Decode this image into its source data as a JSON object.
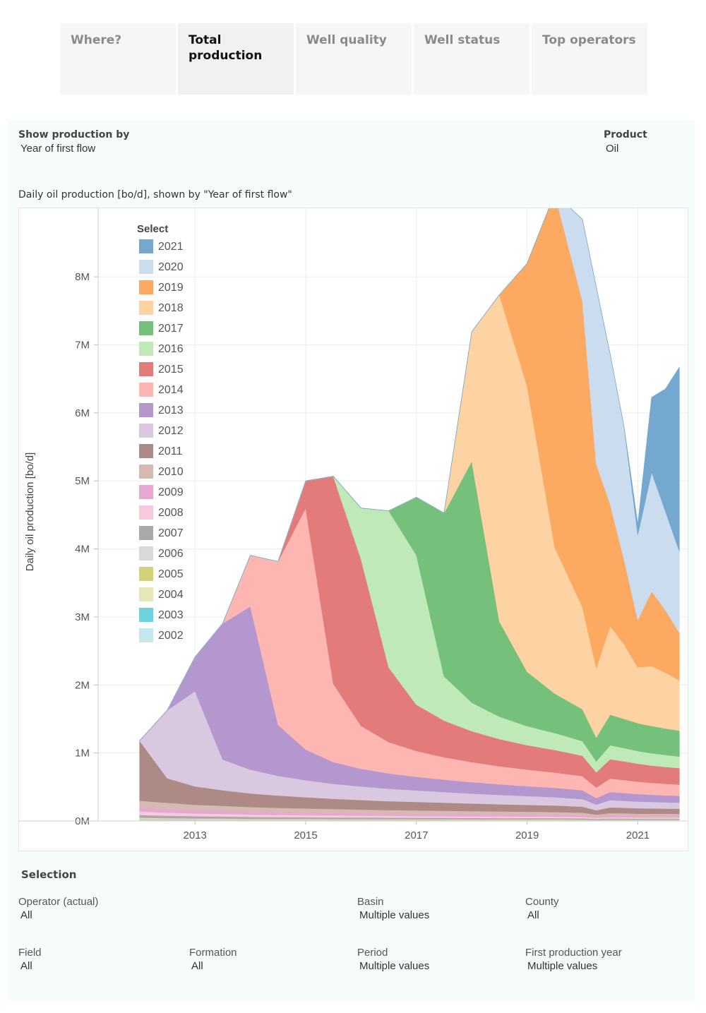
{
  "tabs": [
    {
      "label": "Where?",
      "active": false
    },
    {
      "label": "Total production",
      "active": true
    },
    {
      "label": "Well quality",
      "active": false
    },
    {
      "label": "Well status",
      "active": false
    },
    {
      "label": "Top operators",
      "active": false
    }
  ],
  "controls": {
    "show_by_label": "Show production by",
    "show_by_value": "Year of first flow",
    "product_label": "Product",
    "product_value": "Oil"
  },
  "chart_title": "Daily oil production [bo/d], shown by \"Year of first flow\"",
  "selection": {
    "heading": "Selection",
    "operator_label": "Operator (actual)",
    "operator_value": "All",
    "basin_label": "Basin",
    "basin_value": "Multiple values",
    "county_label": "County",
    "county_value": "All",
    "field_label": "Field",
    "field_value": "All",
    "formation_label": "Formation",
    "formation_value": "All",
    "period_label": "Period",
    "period_value": "Multiple values",
    "first_prod_label": "First production year",
    "first_prod_value": "Multiple values"
  },
  "chart_data": {
    "type": "area",
    "stacked": true,
    "ylabel": "Daily oil production [bo/d]",
    "xlabel": "",
    "ylim": [
      0,
      8800000
    ],
    "xlim": [
      2011.25,
      2021.9
    ],
    "y_ticks": [
      0,
      1000000,
      2000000,
      3000000,
      4000000,
      5000000,
      6000000,
      7000000,
      8000000
    ],
    "y_tick_labels": [
      "0M",
      "1M",
      "2M",
      "3M",
      "4M",
      "5M",
      "6M",
      "7M",
      "8M"
    ],
    "x_ticks": [
      2013,
      2015,
      2017,
      2019,
      2021
    ],
    "x_tick_labels": [
      "2013",
      "2015",
      "2017",
      "2019",
      "2021"
    ],
    "grid": true,
    "legend": {
      "title": "Select",
      "position": "top-left"
    },
    "x": [
      2012.0,
      2012.5,
      2013.0,
      2013.5,
      2014.0,
      2014.5,
      2015.0,
      2015.5,
      2016.0,
      2016.5,
      2017.0,
      2017.5,
      2018.0,
      2018.5,
      2019.0,
      2019.5,
      2020.0,
      2020.25,
      2020.5,
      2020.75,
      2021.0,
      2021.25,
      2021.5,
      2021.75
    ],
    "series": [
      {
        "name": "2002",
        "color": "#c5e6ec",
        "values": [
          6000,
          5000,
          4000,
          4000,
          3000,
          3000,
          3000,
          3000,
          3000,
          3000,
          3000,
          3000,
          3000,
          3000,
          3000,
          3000,
          2000,
          2000,
          2000,
          2000,
          2000,
          2000,
          2000,
          2000
        ]
      },
      {
        "name": "2003",
        "color": "#6dd3e0",
        "values": [
          4000,
          3000,
          3000,
          3000,
          3000,
          3000,
          3000,
          3000,
          3000,
          3000,
          3000,
          3000,
          3000,
          2000,
          2000,
          2000,
          2000,
          2000,
          2000,
          2000,
          2000,
          2000,
          2000,
          2000
        ]
      },
      {
        "name": "2004",
        "color": "#e5e7b8",
        "values": [
          8000,
          7000,
          6000,
          6000,
          5000,
          5000,
          5000,
          5000,
          5000,
          5000,
          4000,
          4000,
          4000,
          4000,
          4000,
          4000,
          4000,
          3000,
          3000,
          3000,
          3000,
          3000,
          3000,
          3000
        ]
      },
      {
        "name": "2005",
        "color": "#cfd27a",
        "values": [
          12000,
          11000,
          10000,
          9000,
          8000,
          8000,
          8000,
          7000,
          7000,
          7000,
          7000,
          7000,
          6000,
          6000,
          6000,
          6000,
          6000,
          4000,
          5000,
          5000,
          5000,
          5000,
          5000,
          5000
        ]
      },
      {
        "name": "2006",
        "color": "#d9d9d9",
        "values": [
          20000,
          18000,
          16000,
          15000,
          14000,
          13000,
          13000,
          12000,
          12000,
          11000,
          11000,
          11000,
          10000,
          10000,
          10000,
          10000,
          9000,
          7000,
          9000,
          9000,
          8000,
          8000,
          8000,
          8000
        ]
      },
      {
        "name": "2007",
        "color": "#a9a9a9",
        "values": [
          40000,
          36000,
          33000,
          30000,
          28000,
          26000,
          25000,
          24000,
          23000,
          22000,
          21000,
          20000,
          20000,
          19000,
          19000,
          18000,
          17000,
          13000,
          16000,
          16000,
          15000,
          15000,
          15000,
          15000
        ]
      },
      {
        "name": "2008",
        "color": "#f7c9dc",
        "values": [
          50000,
          45000,
          40000,
          38000,
          35000,
          33000,
          31000,
          30000,
          28000,
          27000,
          26000,
          25000,
          24000,
          24000,
          23000,
          22000,
          21000,
          16000,
          20000,
          19000,
          18000,
          18000,
          18000,
          18000
        ]
      },
      {
        "name": "2009",
        "color": "#e8a7d0",
        "values": [
          60000,
          54000,
          48000,
          45000,
          42000,
          40000,
          38000,
          36000,
          34000,
          33000,
          32000,
          31000,
          30000,
          29000,
          28000,
          27000,
          25000,
          19000,
          24000,
          23000,
          22000,
          22000,
          22000,
          22000
        ]
      },
      {
        "name": "2010",
        "color": "#d5b9b3",
        "values": [
          100000,
          90000,
          80000,
          74000,
          68000,
          64000,
          60000,
          57000,
          54000,
          52000,
          50000,
          48000,
          46000,
          44000,
          43000,
          41000,
          38000,
          28000,
          36000,
          35000,
          34000,
          33000,
          33000,
          32000
        ]
      },
      {
        "name": "2011",
        "color": "#ad8a86",
        "values": [
          880000,
          360000,
          270000,
          230000,
          200000,
          180000,
          165000,
          150000,
          140000,
          130000,
          125000,
          118000,
          112000,
          106000,
          100000,
          96000,
          88000,
          65000,
          84000,
          82000,
          80000,
          78000,
          76000,
          75000
        ]
      },
      {
        "name": "2012",
        "color": "#d9c8e0",
        "values": [
          0,
          1000000,
          1400000,
          450000,
          350000,
          290000,
          250000,
          220000,
          200000,
          182000,
          168000,
          156000,
          146000,
          137000,
          129000,
          122000,
          112000,
          84000,
          106000,
          102000,
          98000,
          95000,
          92000,
          90000
        ]
      },
      {
        "name": "2013",
        "color": "#b597d0",
        "values": [
          0,
          0,
          500000,
          2000000,
          2400000,
          750000,
          450000,
          320000,
          260000,
          225000,
          200000,
          182000,
          168000,
          156000,
          146000,
          138000,
          128000,
          95000,
          120000,
          115000,
          110000,
          106000,
          102000,
          99000
        ]
      },
      {
        "name": "2014",
        "color": "#fdb6b2",
        "values": [
          0,
          0,
          0,
          0,
          750000,
          2400000,
          3550000,
          1150000,
          630000,
          460000,
          380000,
          330000,
          295000,
          265000,
          243000,
          225000,
          208000,
          155000,
          198000,
          190000,
          182000,
          175000,
          170000,
          165000
        ]
      },
      {
        "name": "2015",
        "color": "#e37b7b",
        "values": [
          0,
          0,
          0,
          0,
          0,
          0,
          400000,
          3050000,
          2450000,
          1100000,
          680000,
          540000,
          455000,
          400000,
          360000,
          330000,
          300000,
          225000,
          285000,
          275000,
          265000,
          255000,
          248000,
          242000
        ]
      },
      {
        "name": "2016",
        "color": "#bfeab8",
        "values": [
          0,
          0,
          0,
          0,
          0,
          0,
          0,
          0,
          750000,
          2300000,
          2200000,
          650000,
          420000,
          330000,
          280000,
          250000,
          215000,
          160000,
          205000,
          195000,
          185000,
          180000,
          175000,
          170000
        ]
      },
      {
        "name": "2017",
        "color": "#75c07a",
        "values": [
          0,
          0,
          0,
          0,
          0,
          0,
          0,
          0,
          0,
          0,
          850000,
          2400000,
          3550000,
          1400000,
          800000,
          580000,
          470000,
          350000,
          450000,
          430000,
          410000,
          400000,
          390000,
          380000
        ]
      },
      {
        "name": "2018",
        "color": "#fdd3a4",
        "values": [
          0,
          0,
          0,
          0,
          0,
          0,
          0,
          0,
          0,
          0,
          0,
          0,
          1900000,
          4800000,
          4200000,
          2150000,
          1500000,
          1020000,
          1300000,
          1100000,
          820000,
          880000,
          820000,
          740000
        ]
      },
      {
        "name": "2019",
        "color": "#fcaa62",
        "values": [
          0,
          0,
          0,
          0,
          0,
          0,
          0,
          0,
          0,
          0,
          0,
          0,
          0,
          0,
          1800000,
          5200000,
          4500000,
          3000000,
          1800000,
          1250000,
          700000,
          1100000,
          920000,
          700000
        ]
      },
      {
        "name": "2020",
        "color": "#cbdcef",
        "values": [
          0,
          0,
          0,
          0,
          0,
          0,
          0,
          0,
          0,
          0,
          0,
          0,
          0,
          0,
          0,
          0,
          1200000,
          2600000,
          2200000,
          1950000,
          1250000,
          1750000,
          1450000,
          1200000
        ]
      },
      {
        "name": "2021",
        "color": "#75a8cf",
        "values": [
          0,
          0,
          0,
          0,
          0,
          0,
          0,
          0,
          0,
          0,
          0,
          0,
          0,
          0,
          0,
          0,
          0,
          0,
          0,
          0,
          150000,
          1100000,
          1800000,
          2700000
        ]
      }
    ]
  }
}
